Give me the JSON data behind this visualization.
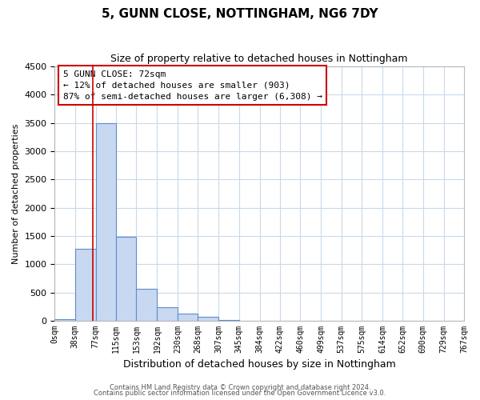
{
  "title": "5, GUNN CLOSE, NOTTINGHAM, NG6 7DY",
  "subtitle": "Size of property relative to detached houses in Nottingham",
  "xlabel": "Distribution of detached houses by size in Nottingham",
  "ylabel": "Number of detached properties",
  "bin_edges": [
    0,
    38,
    77,
    115,
    153,
    192,
    230,
    268,
    307,
    345,
    384,
    422,
    460,
    499,
    537,
    575,
    614,
    652,
    690,
    729,
    767
  ],
  "bin_labels": [
    "0sqm",
    "38sqm",
    "77sqm",
    "115sqm",
    "153sqm",
    "192sqm",
    "230sqm",
    "268sqm",
    "307sqm",
    "345sqm",
    "384sqm",
    "422sqm",
    "460sqm",
    "499sqm",
    "537sqm",
    "575sqm",
    "614sqm",
    "652sqm",
    "690sqm",
    "729sqm",
    "767sqm"
  ],
  "counts": [
    30,
    1270,
    3500,
    1480,
    570,
    245,
    130,
    75,
    20,
    5,
    3,
    2,
    1,
    0,
    0,
    0,
    0,
    0,
    0,
    0
  ],
  "bar_facecolor": "#c8d8f0",
  "bar_edgecolor": "#5b8dcf",
  "grid_color": "#c8daea",
  "background_color": "#ffffff",
  "property_line_x": 72,
  "property_line_color": "#cc0000",
  "ylim": [
    0,
    4500
  ],
  "anno_line1": "5 GUNN CLOSE: 72sqm",
  "anno_line2": "← 12% of detached houses are smaller (903)",
  "anno_line3": "87% of semi-detached houses are larger (6,308) →",
  "footer_line1": "Contains HM Land Registry data © Crown copyright and database right 2024.",
  "footer_line2": "Contains public sector information licensed under the Open Government Licence v3.0."
}
